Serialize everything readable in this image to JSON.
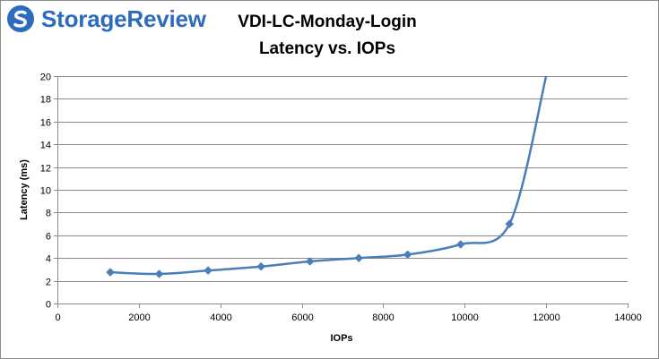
{
  "brand": {
    "name": "StorageReview",
    "color": "#2e6bbf"
  },
  "chart_data": {
    "type": "line",
    "title": "VDI-LC-Monday-Login",
    "subtitle": "Latency vs. IOPs",
    "xlabel": "IOPs",
    "ylabel": "Latency (ms)",
    "xlim": [
      0,
      14000
    ],
    "ylim": [
      0,
      20
    ],
    "x_ticks": [
      0,
      2000,
      4000,
      6000,
      8000,
      10000,
      12000,
      14000
    ],
    "y_ticks": [
      0,
      2,
      4,
      6,
      8,
      10,
      12,
      14,
      16,
      18,
      20
    ],
    "grid": "horizontal",
    "legend": "none",
    "series": [
      {
        "color": "#4a7ebb",
        "marker": "diamond",
        "x": [
          1300,
          2500,
          3700,
          5000,
          6200,
          7400,
          8600,
          9900,
          11100,
          12000
        ],
        "y": [
          2.75,
          2.6,
          2.9,
          3.25,
          3.7,
          4.0,
          4.3,
          5.2,
          7.0,
          20.0
        ],
        "marked_points": 9
      }
    ]
  }
}
